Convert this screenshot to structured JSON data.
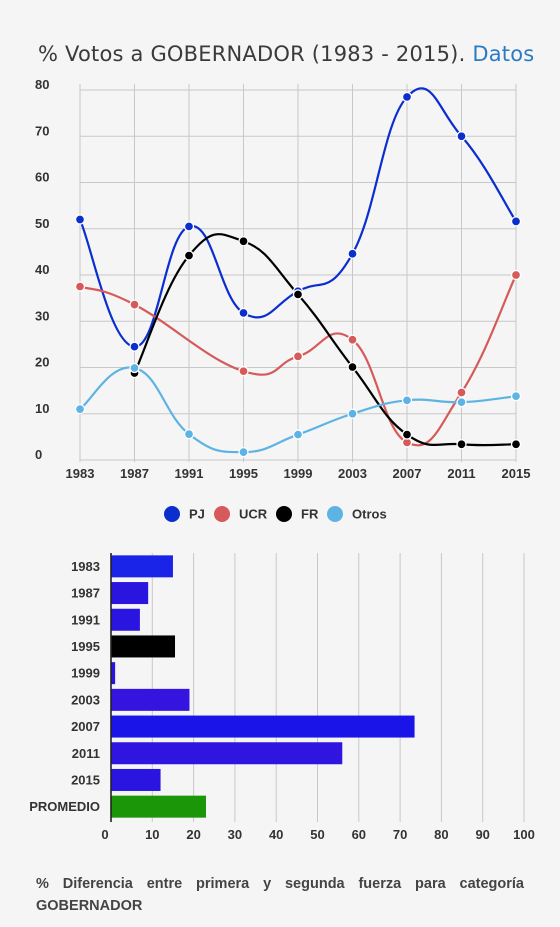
{
  "header": {
    "title": "% Votos a GOBERNADOR (1983 - 2015).",
    "link": "Datos"
  },
  "chart_data": [
    {
      "type": "line",
      "x": [
        "1983",
        "1987",
        "1991",
        "1995",
        "1999",
        "2003",
        "2007",
        "2011",
        "2015"
      ],
      "ylim": [
        0,
        80
      ],
      "yticks": [
        0,
        10,
        20,
        30,
        40,
        50,
        60,
        70,
        80
      ],
      "grid": true,
      "legend": "bottom",
      "series": [
        {
          "name": "PJ",
          "color": "#0b2ecf",
          "values": [
            52,
            24.5,
            50.5,
            31.8,
            36.5,
            44.6,
            78.5,
            70,
            51.6
          ]
        },
        {
          "name": "UCR",
          "color": "#d65a5a",
          "values": [
            37.5,
            33.6,
            null,
            19.2,
            22.4,
            26,
            3.8,
            14.6,
            40
          ]
        },
        {
          "name": "FR",
          "color": "#000000",
          "values": [
            null,
            18.8,
            44.2,
            47.3,
            35.8,
            20.1,
            5.5,
            3.4,
            3.4
          ]
        },
        {
          "name": "Otros",
          "color": "#5db3e3",
          "values": [
            11,
            19.9,
            5.6,
            1.7,
            5.5,
            10,
            12.9,
            12.5,
            13.8
          ]
        }
      ]
    },
    {
      "type": "bar",
      "orientation": "horizontal",
      "categories": [
        "1983",
        "1987",
        "1991",
        "1995",
        "1999",
        "2003",
        "2007",
        "2011",
        "2015",
        "PROMEDIO"
      ],
      "values": [
        15,
        9,
        7,
        15.5,
        1,
        19,
        73.5,
        56,
        12,
        23
      ],
      "colors": [
        "#1a23e8",
        "#2a14e0",
        "#2a14e0",
        "#000000",
        "#2a14e0",
        "#3514e0",
        "#1a14e8",
        "#3014e0",
        "#2a14e0",
        "#1a9608"
      ],
      "xlim": [
        0,
        100
      ],
      "xticks": [
        0,
        10,
        20,
        30,
        40,
        50,
        60,
        70,
        80,
        90,
        100
      ],
      "grid": true,
      "caption": "% Diferencia entre primera y segunda fuerza para categoría GOBERNADOR"
    }
  ]
}
